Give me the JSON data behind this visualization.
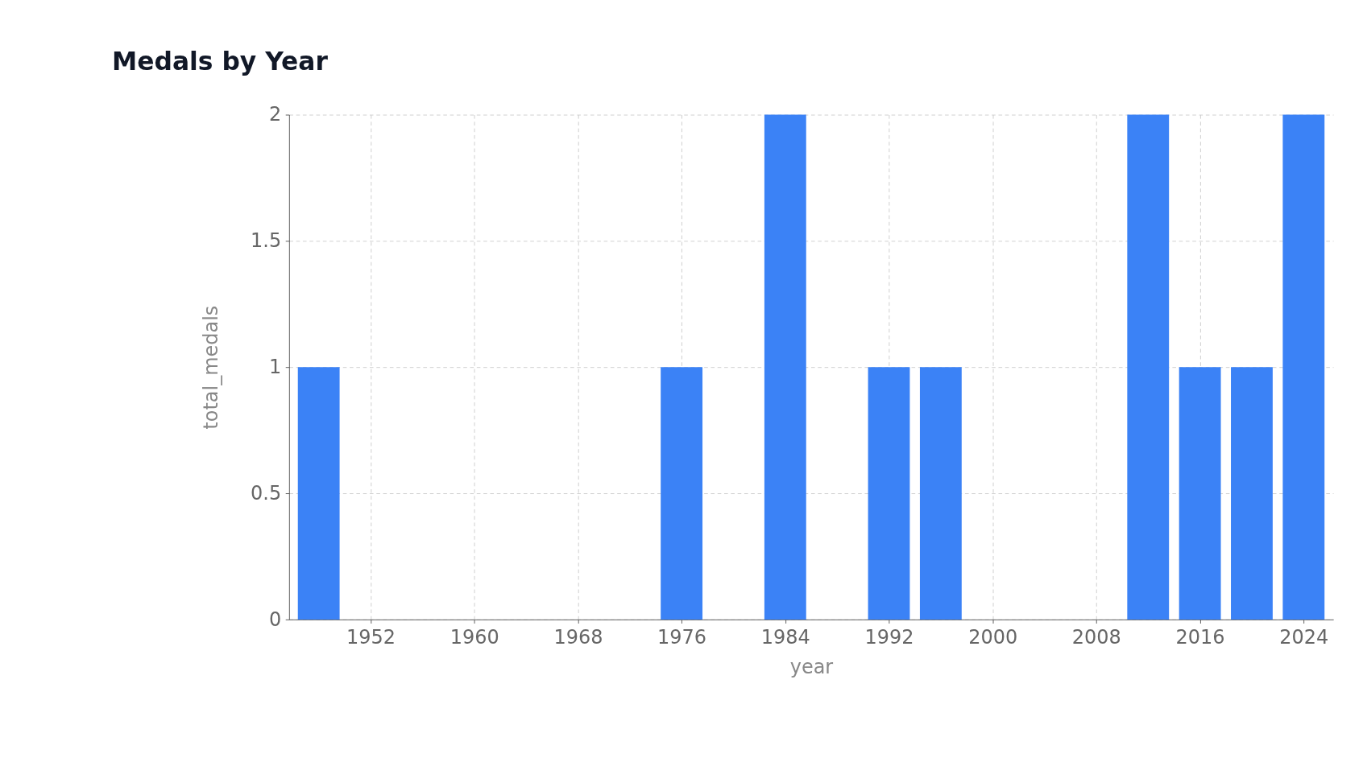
{
  "chart_data": {
    "type": "bar",
    "title": "Medals by Year",
    "xlabel": "year",
    "ylabel": "total_medals",
    "x": [
      1948,
      1976,
      1984,
      1992,
      1996,
      2012,
      2016,
      2020,
      2024
    ],
    "values": [
      1,
      1,
      2,
      1,
      1,
      2,
      1,
      1,
      2
    ],
    "color": "#3b82f6",
    "xlim": [
      1946,
      2026
    ],
    "xticks": [
      1952,
      1960,
      1968,
      1976,
      1984,
      1992,
      2000,
      2008,
      2016,
      2024
    ],
    "ylim": [
      0,
      2
    ],
    "yticks": [
      0,
      0.5,
      1,
      1.5,
      2
    ],
    "grid": true
  }
}
